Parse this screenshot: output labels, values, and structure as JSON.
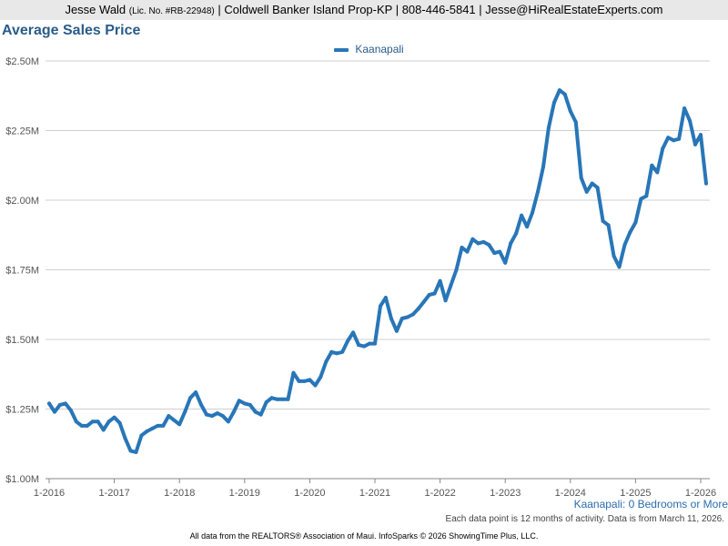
{
  "header": {
    "agent_name": "Jesse Wald",
    "license": "(Lic. No. #RB-22948)",
    "brokerage": "| Coldwell Banker Island Prop-KP | 808-446-5841 | Jesse@HiRealEstateExperts.com"
  },
  "subset_label": "Kaanapali: 0 Bedrooms or More",
  "note": "Each data point is 12 months of activity. Data is from March 11, 2026.",
  "footer": "All data from the REALTORS® Association of Maui. InfoSparks © 2026 ShowingTime Plus, LLC.",
  "colors": {
    "series": "#2876b8",
    "title": "#2a5c8a"
  },
  "chart_data": {
    "type": "line",
    "title": "Average Sales Price",
    "xlabel": "",
    "ylabel": "",
    "ylim": [
      1000000,
      2500000
    ],
    "yticks": [
      1000000,
      1250000,
      1500000,
      1750000,
      2000000,
      2250000,
      2500000
    ],
    "ytick_labels": [
      "$1.00M",
      "$1.25M",
      "$1.50M",
      "$1.75M",
      "$2.00M",
      "$2.25M",
      "$2.50M"
    ],
    "xticks": [
      "1-2016",
      "1-2017",
      "1-2018",
      "1-2019",
      "1-2020",
      "1-2021",
      "1-2022",
      "1-2023",
      "1-2024",
      "1-2025",
      "1-2026"
    ],
    "x_start": "1-2016",
    "x_interval": "month",
    "legend_position": "top-center",
    "series": [
      {
        "name": "Kaanapali",
        "values": [
          1270000,
          1240000,
          1265000,
          1270000,
          1245000,
          1205000,
          1190000,
          1190000,
          1205000,
          1205000,
          1175000,
          1205000,
          1220000,
          1200000,
          1145000,
          1100000,
          1095000,
          1155000,
          1170000,
          1180000,
          1190000,
          1190000,
          1225000,
          1210000,
          1195000,
          1240000,
          1290000,
          1310000,
          1265000,
          1230000,
          1225000,
          1235000,
          1225000,
          1205000,
          1240000,
          1280000,
          1270000,
          1265000,
          1240000,
          1230000,
          1275000,
          1290000,
          1285000,
          1285000,
          1285000,
          1380000,
          1350000,
          1350000,
          1355000,
          1335000,
          1365000,
          1420000,
          1455000,
          1450000,
          1455000,
          1495000,
          1525000,
          1480000,
          1475000,
          1485000,
          1485000,
          1620000,
          1650000,
          1575000,
          1530000,
          1575000,
          1580000,
          1590000,
          1610000,
          1635000,
          1660000,
          1665000,
          1710000,
          1640000,
          1695000,
          1750000,
          1830000,
          1815000,
          1860000,
          1845000,
          1850000,
          1840000,
          1810000,
          1815000,
          1775000,
          1845000,
          1880000,
          1945000,
          1905000,
          1955000,
          2030000,
          2120000,
          2260000,
          2350000,
          2395000,
          2380000,
          2320000,
          2280000,
          2080000,
          2030000,
          2060000,
          2045000,
          1925000,
          1910000,
          1800000,
          1760000,
          1840000,
          1885000,
          1920000,
          2005000,
          2015000,
          2125000,
          2100000,
          2185000,
          2225000,
          2215000,
          2220000,
          2330000,
          2285000,
          2200000,
          2235000,
          2060000
        ]
      }
    ]
  }
}
